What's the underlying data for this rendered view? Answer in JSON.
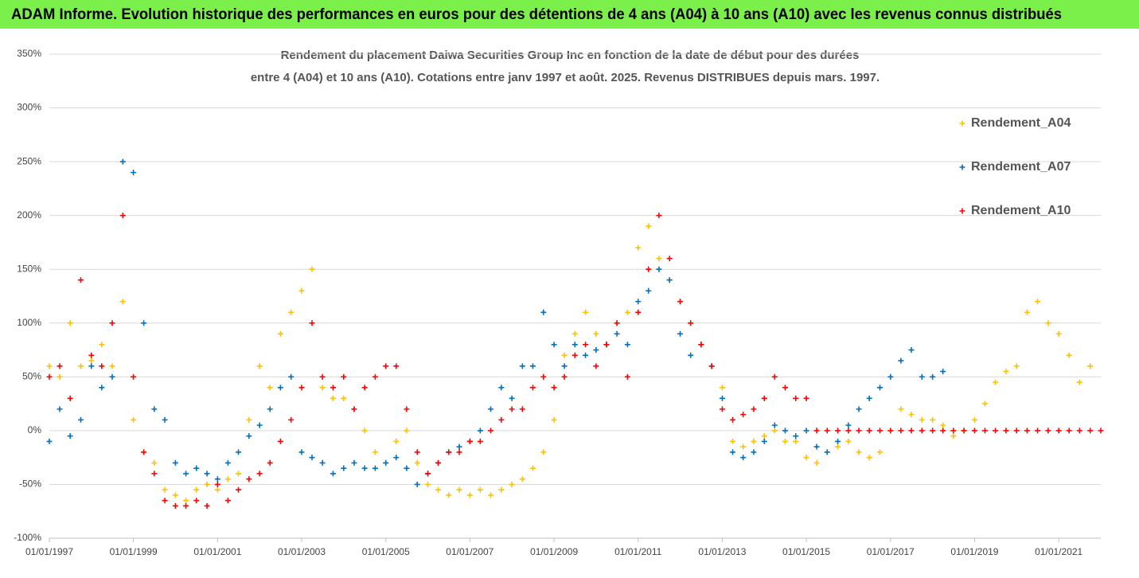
{
  "chart_data": {
    "type": "scatter",
    "title": "ADAM Informe. Evolution historique des performances en euros pour des détentions de 4 ans (A04) à 10 ans (A10) avec les revenus connus distribués",
    "subtitle": [
      "Rendement du placement Daiwa Securities Group Inc en fonction de la date de début pour des durées",
      "entre 4 (A04) et 10 ans (A10). Cotations entre janv 1997 et août. 2025. Revenus DISTRIBUES depuis mars. 1997."
    ],
    "xlim": [
      "1997-01-01",
      "2022-01-01"
    ],
    "xticks": [
      {
        "value": "1997-01-01",
        "label": "01/01/1997"
      },
      {
        "value": "1999-01-01",
        "label": "01/01/1999"
      },
      {
        "value": "2001-01-01",
        "label": "01/01/2001"
      },
      {
        "value": "2003-01-01",
        "label": "01/01/2003"
      },
      {
        "value": "2005-01-01",
        "label": "01/01/2005"
      },
      {
        "value": "2007-01-01",
        "label": "01/01/2007"
      },
      {
        "value": "2009-01-01",
        "label": "01/01/2009"
      },
      {
        "value": "2011-01-01",
        "label": "01/01/2011"
      },
      {
        "value": "2013-01-01",
        "label": "01/01/2013"
      },
      {
        "value": "2015-01-01",
        "label": "01/01/2015"
      },
      {
        "value": "2017-01-01",
        "label": "01/01/2017"
      },
      {
        "value": "2019-01-01",
        "label": "01/01/2019"
      },
      {
        "value": "2021-01-01",
        "label": "01/01/2021"
      }
    ],
    "ylim": [
      -100,
      350
    ],
    "yticks": [
      {
        "value": -100,
        "label": "-100%"
      },
      {
        "value": -50,
        "label": "-50%"
      },
      {
        "value": 0,
        "label": "0%"
      },
      {
        "value": 50,
        "label": "50%"
      },
      {
        "value": 100,
        "label": "100%"
      },
      {
        "value": 150,
        "label": "150%"
      },
      {
        "value": 200,
        "label": "200%"
      },
      {
        "value": 250,
        "label": "250%"
      },
      {
        "value": 300,
        "label": "300%"
      },
      {
        "value": 350,
        "label": "350%"
      }
    ],
    "grid": true,
    "legend": "top-right",
    "series": [
      {
        "name": "Rendement_A04",
        "color": "#ffc000",
        "x": [
          "1997-01-01",
          "1997-04-01",
          "1997-07-01",
          "1997-10-01",
          "1998-01-01",
          "1998-04-01",
          "1998-07-01",
          "1998-10-01",
          "1999-01-01",
          "1999-04-01",
          "1999-07-01",
          "1999-10-01",
          "2000-01-01",
          "2000-04-01",
          "2000-07-01",
          "2000-10-01",
          "2001-01-01",
          "2001-04-01",
          "2001-07-01",
          "2001-10-01",
          "2002-01-01",
          "2002-04-01",
          "2002-07-01",
          "2002-10-01",
          "2003-01-01",
          "2003-04-01",
          "2003-07-01",
          "2003-10-01",
          "2004-01-01",
          "2004-04-01",
          "2004-07-01",
          "2004-10-01",
          "2005-01-01",
          "2005-04-01",
          "2005-07-01",
          "2005-10-01",
          "2006-01-01",
          "2006-04-01",
          "2006-07-01",
          "2006-10-01",
          "2007-01-01",
          "2007-04-01",
          "2007-07-01",
          "2007-10-01",
          "2008-01-01",
          "2008-04-01",
          "2008-07-01",
          "2008-10-01",
          "2009-01-01",
          "2009-04-01",
          "2009-07-01",
          "2009-10-01",
          "2010-01-01",
          "2010-04-01",
          "2010-07-01",
          "2010-10-01",
          "2011-01-01",
          "2011-04-01",
          "2011-07-01",
          "2011-10-01",
          "2012-01-01",
          "2012-04-01",
          "2012-07-01",
          "2012-10-01",
          "2013-01-01",
          "2013-04-01",
          "2013-07-01",
          "2013-10-01",
          "2014-01-01",
          "2014-04-01",
          "2014-07-01",
          "2014-10-01",
          "2015-01-01",
          "2015-04-01",
          "2015-07-01",
          "2015-10-01",
          "2016-01-01",
          "2016-04-01",
          "2016-07-01",
          "2016-10-01",
          "2017-01-01",
          "2017-04-01",
          "2017-07-01",
          "2017-10-01",
          "2018-01-01",
          "2018-04-01",
          "2018-07-01",
          "2018-10-01",
          "2019-01-01",
          "2019-04-01",
          "2019-07-01",
          "2019-10-01",
          "2020-01-01",
          "2020-04-01",
          "2020-07-01",
          "2020-10-01",
          "2021-01-01",
          "2021-04-01",
          "2021-07-01",
          "2021-10-01"
        ],
        "values": [
          60,
          50,
          100,
          60,
          65,
          80,
          60,
          120,
          10,
          -20,
          -30,
          -55,
          -60,
          -65,
          -55,
          -50,
          -55,
          -45,
          -40,
          10,
          60,
          40,
          90,
          110,
          130,
          150,
          40,
          30,
          30,
          20,
          0,
          -20,
          -30,
          -10,
          0,
          -30,
          -50,
          -55,
          -60,
          -55,
          -60,
          -55,
          -60,
          -55,
          -50,
          -45,
          -35,
          -20,
          10,
          70,
          90,
          110,
          90,
          80,
          100,
          110,
          170,
          190,
          160,
          140,
          120,
          100,
          80,
          60,
          40,
          -10,
          -15,
          -10,
          -5,
          0,
          -10,
          -10,
          -25,
          -30,
          -20,
          -15,
          -10,
          -20,
          -25,
          -20,
          0,
          20,
          15,
          10,
          10,
          5,
          -5,
          0,
          10,
          25,
          45,
          55,
          60,
          110,
          120,
          100,
          90,
          70,
          45,
          60
        ]
      },
      {
        "name": "Rendement_A07",
        "color": "#0070c0",
        "x": [
          "1997-01-01",
          "1997-04-01",
          "1997-07-01",
          "1997-10-01",
          "1998-01-01",
          "1998-04-01",
          "1998-07-01",
          "1998-10-01",
          "1999-01-01",
          "1999-04-01",
          "1999-07-01",
          "1999-10-01",
          "2000-01-01",
          "2000-04-01",
          "2000-07-01",
          "2000-10-01",
          "2001-01-01",
          "2001-04-01",
          "2001-07-01",
          "2001-10-01",
          "2002-01-01",
          "2002-04-01",
          "2002-07-01",
          "2002-10-01",
          "2003-01-01",
          "2003-04-01",
          "2003-07-01",
          "2003-10-01",
          "2004-01-01",
          "2004-04-01",
          "2004-07-01",
          "2004-10-01",
          "2005-01-01",
          "2005-04-01",
          "2005-07-01",
          "2005-10-01",
          "2006-01-01",
          "2006-04-01",
          "2006-07-01",
          "2006-10-01",
          "2007-01-01",
          "2007-04-01",
          "2007-07-01",
          "2007-10-01",
          "2008-01-01",
          "2008-04-01",
          "2008-07-01",
          "2008-10-01",
          "2009-01-01",
          "2009-04-01",
          "2009-07-01",
          "2009-10-01",
          "2010-01-01",
          "2010-04-01",
          "2010-07-01",
          "2010-10-01",
          "2011-01-01",
          "2011-04-01",
          "2011-07-01",
          "2011-10-01",
          "2012-01-01",
          "2012-04-01",
          "2012-07-01",
          "2012-10-01",
          "2013-01-01",
          "2013-04-01",
          "2013-07-01",
          "2013-10-01",
          "2014-01-01",
          "2014-04-01",
          "2014-07-01",
          "2014-10-01",
          "2015-01-01",
          "2015-04-01",
          "2015-07-01",
          "2015-10-01",
          "2016-01-01",
          "2016-04-01",
          "2016-07-01",
          "2016-10-01",
          "2017-01-01",
          "2017-04-01",
          "2017-07-01",
          "2017-10-01",
          "2018-01-01",
          "2018-04-01"
        ],
        "values": [
          -10,
          20,
          -5,
          10,
          60,
          40,
          50,
          250,
          240,
          100,
          20,
          10,
          -30,
          -40,
          -35,
          -40,
          -45,
          -30,
          -20,
          -5,
          5,
          20,
          40,
          50,
          -20,
          -25,
          -30,
          -40,
          -35,
          -30,
          -35,
          -35,
          -30,
          -25,
          -35,
          -50,
          -40,
          -30,
          -20,
          -15,
          -10,
          0,
          20,
          40,
          30,
          60,
          60,
          110,
          80,
          60,
          80,
          70,
          75,
          80,
          90,
          80,
          120,
          130,
          150,
          140,
          90,
          70,
          80,
          60,
          30,
          -20,
          -25,
          -20,
          -10,
          5,
          0,
          -5,
          0,
          -15,
          -20,
          -10,
          5,
          20,
          30,
          40,
          50,
          65,
          75,
          50,
          50,
          55
        ]
      },
      {
        "name": "Rendement_A10",
        "color": "#ff0000",
        "x": [
          "1997-01-01",
          "1997-04-01",
          "1997-07-01",
          "1997-10-01",
          "1998-01-01",
          "1998-04-01",
          "1998-07-01",
          "1998-10-01",
          "1999-01-01",
          "1999-04-01",
          "1999-07-01",
          "1999-10-01",
          "2000-01-01",
          "2000-04-01",
          "2000-07-01",
          "2000-10-01",
          "2001-01-01",
          "2001-04-01",
          "2001-07-01",
          "2001-10-01",
          "2002-01-01",
          "2002-04-01",
          "2002-07-01",
          "2002-10-01",
          "2003-01-01",
          "2003-04-01",
          "2003-07-01",
          "2003-10-01",
          "2004-01-01",
          "2004-04-01",
          "2004-07-01",
          "2004-10-01",
          "2005-01-01",
          "2005-04-01",
          "2005-07-01",
          "2005-10-01",
          "2006-01-01",
          "2006-04-01",
          "2006-07-01",
          "2006-10-01",
          "2007-01-01",
          "2007-04-01",
          "2007-07-01",
          "2007-10-01",
          "2008-01-01",
          "2008-04-01",
          "2008-07-01",
          "2008-10-01",
          "2009-01-01",
          "2009-04-01",
          "2009-07-01",
          "2009-10-01",
          "2010-01-01",
          "2010-04-01",
          "2010-07-01",
          "2010-10-01",
          "2011-01-01",
          "2011-04-01",
          "2011-07-01",
          "2011-10-01",
          "2012-01-01",
          "2012-04-01",
          "2012-07-01",
          "2012-10-01",
          "2013-01-01",
          "2013-04-01",
          "2013-07-01",
          "2013-10-01",
          "2014-01-01",
          "2014-04-01",
          "2014-07-01",
          "2014-10-01",
          "2015-01-01",
          "2015-04-01",
          "2015-07-01",
          "2015-10-01",
          "2016-01-01",
          "2016-04-01",
          "2016-07-01",
          "2016-10-01",
          "2017-01-01",
          "2017-04-01",
          "2017-07-01",
          "2017-10-01",
          "2018-01-01",
          "2018-04-01",
          "2018-07-01",
          "2018-10-01",
          "2019-01-01",
          "2019-04-01",
          "2019-07-01",
          "2019-10-01",
          "2020-01-01",
          "2020-04-01",
          "2020-07-01",
          "2020-10-01",
          "2021-01-01",
          "2021-04-01",
          "2021-07-01",
          "2021-10-01",
          "2022-01-01"
        ],
        "values": [
          50,
          60,
          30,
          140,
          70,
          60,
          100,
          200,
          50,
          -20,
          -40,
          -65,
          -70,
          -70,
          -65,
          -70,
          -50,
          -65,
          -55,
          -45,
          -40,
          -30,
          -10,
          10,
          40,
          100,
          50,
          40,
          50,
          20,
          40,
          50,
          60,
          60,
          20,
          -20,
          -40,
          -30,
          -20,
          -20,
          -10,
          -10,
          0,
          10,
          20,
          20,
          40,
          50,
          40,
          50,
          70,
          80,
          60,
          80,
          100,
          50,
          110,
          150,
          200,
          160,
          120,
          100,
          80,
          60,
          20,
          10,
          15,
          20,
          30,
          50,
          40,
          30,
          30,
          0,
          0,
          0,
          0,
          0,
          0,
          0,
          0,
          0,
          0,
          0,
          0,
          0,
          0,
          0,
          0,
          0,
          0,
          0,
          0,
          0,
          0,
          0,
          0,
          0,
          0,
          0,
          0
        ]
      }
    ]
  }
}
